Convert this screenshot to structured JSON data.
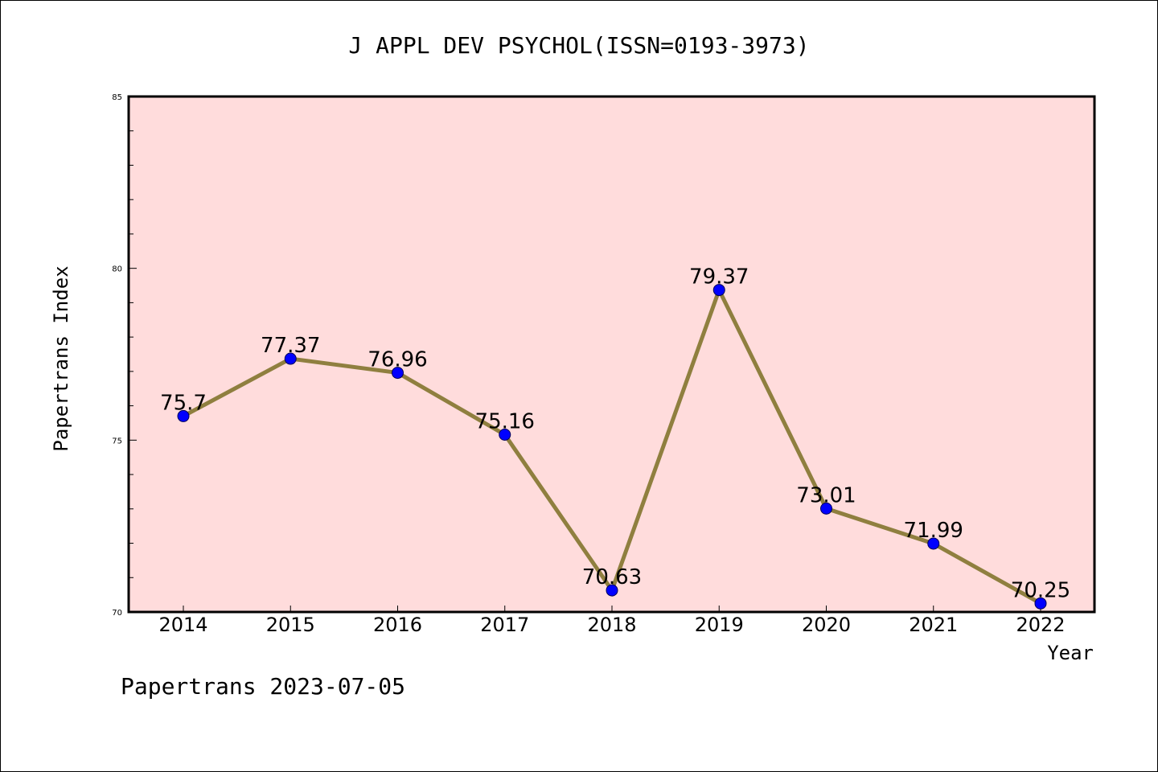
{
  "chart_data": {
    "type": "line",
    "title": "J APPL DEV PSYCHOL(ISSN=0193-3973)",
    "xlabel": "Year",
    "ylabel": "Papertrans Index",
    "ylim": [
      70,
      85
    ],
    "yticks": [
      "70",
      "75",
      "80",
      "85"
    ],
    "categories": [
      "2014",
      "2015",
      "2016",
      "2017",
      "2018",
      "2019",
      "2020",
      "2021",
      "2022"
    ],
    "values": [
      75.7,
      77.37,
      76.96,
      75.16,
      70.63,
      79.37,
      73.01,
      71.99,
      70.25
    ],
    "data_labels": [
      "75.7",
      "77.37",
      "76.96",
      "75.16",
      "70.63",
      "79.37",
      "73.01",
      "71.99",
      "70.25"
    ],
    "line_color": "#8f7f3f",
    "marker_color": "#0000ff",
    "plot_background": "#ffdcdc",
    "grid": false,
    "legend": "none"
  },
  "footer": "Papertrans 2023-07-05"
}
